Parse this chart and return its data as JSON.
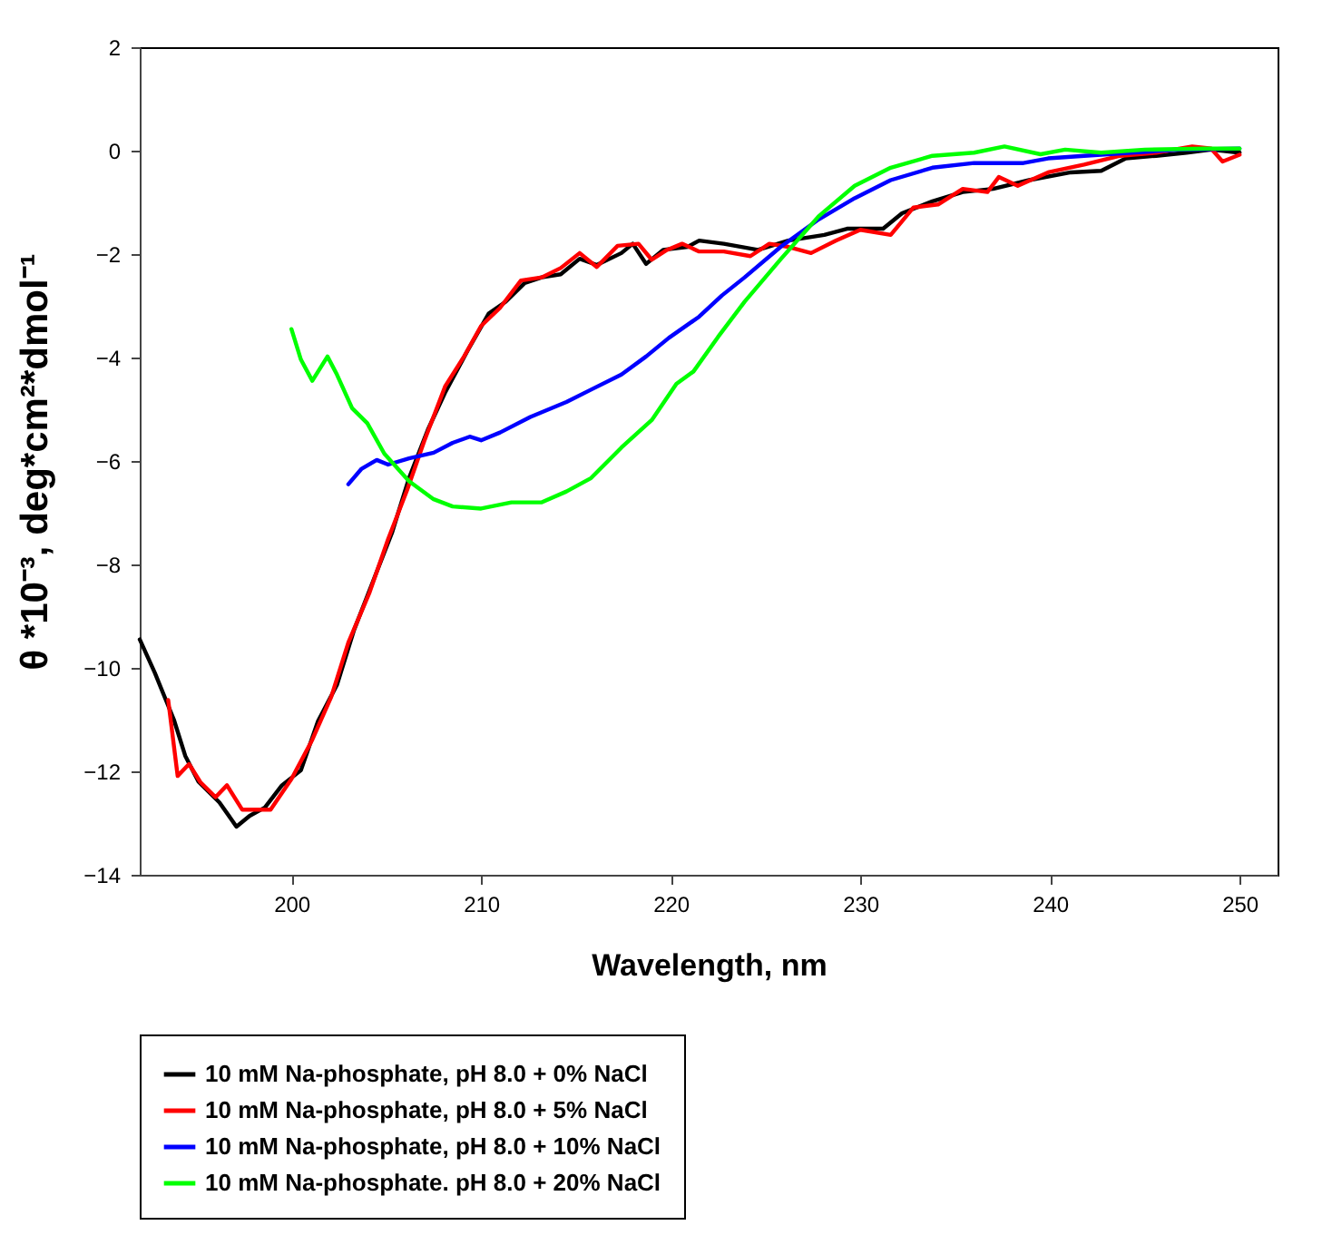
{
  "chart_data": {
    "type": "line",
    "xlabel": "Wavelength, nm",
    "ylabel": "θ *10⁻³, deg*cm²*dmol⁻¹",
    "xlim": [
      192,
      252
    ],
    "xticks": [
      200,
      210,
      220,
      230,
      240,
      250
    ],
    "ylim": [
      -14,
      2
    ],
    "yticks": [
      -14,
      -12,
      -10,
      -8,
      -6,
      -4,
      -2,
      0,
      2
    ],
    "grid": false,
    "legend": "bottom",
    "marker": "none",
    "line_style": "solid",
    "series": [
      {
        "name": "10 mM Na-phosphate, pH 8.0 + 0% NaCl",
        "color": "#000000",
        "x": [
          192.0,
          192.8,
          193.8,
          194.4,
          195.1,
          196.2,
          197.1,
          197.8,
          198.6,
          199.5,
          200.5,
          201.4,
          202.4,
          203.3,
          204.3,
          205.3,
          206.2,
          207.2,
          208.1,
          209.3,
          210.4,
          211.3,
          212.3,
          213.2,
          214.2,
          215.2,
          216.1,
          217.4,
          218.0,
          218.7,
          219.6,
          220.9,
          221.5,
          222.8,
          224.6,
          226.2,
          228.1,
          229.3,
          231.2,
          232.2,
          233.8,
          235.4,
          237.0,
          238.9,
          241.1,
          242.7,
          244.0,
          245.6,
          247.2,
          248.5,
          250.0
        ],
        "values": [
          -9.45,
          -10.1,
          -11.0,
          -11.7,
          -12.2,
          -12.6,
          -13.07,
          -12.86,
          -12.7,
          -12.27,
          -11.98,
          -11.03,
          -10.33,
          -9.27,
          -8.33,
          -7.39,
          -6.33,
          -5.39,
          -4.68,
          -3.86,
          -3.15,
          -2.92,
          -2.56,
          -2.45,
          -2.39,
          -2.09,
          -2.21,
          -1.98,
          -1.8,
          -2.19,
          -1.92,
          -1.86,
          -1.74,
          -1.8,
          -1.92,
          -1.74,
          -1.63,
          -1.51,
          -1.51,
          -1.21,
          -0.98,
          -0.8,
          -0.74,
          -0.57,
          -0.42,
          -0.39,
          -0.15,
          -0.1,
          -0.04,
          0.02,
          -0.04
        ]
      },
      {
        "name": "10 mM Na-phosphate, pH 8.0 + 5% NaCl",
        "color": "#ff0000",
        "x": [
          193.5,
          194.0,
          194.6,
          195.2,
          196.0,
          196.6,
          197.4,
          198.2,
          198.9,
          200.0,
          201.1,
          202.1,
          203.0,
          204.1,
          205.1,
          206.1,
          207.0,
          208.1,
          209.1,
          210.0,
          211.0,
          212.1,
          213.2,
          214.2,
          215.2,
          216.1,
          217.2,
          218.3,
          219.0,
          219.8,
          220.6,
          221.5,
          222.8,
          224.2,
          225.2,
          226.2,
          227.4,
          228.7,
          230.0,
          231.6,
          232.8,
          234.1,
          235.4,
          236.7,
          237.3,
          238.3,
          239.9,
          241.8,
          243.7,
          245.6,
          247.5,
          248.5,
          249.1,
          250.0
        ],
        "values": [
          -10.62,
          -12.09,
          -11.86,
          -12.21,
          -12.5,
          -12.27,
          -12.74,
          -12.74,
          -12.74,
          -12.15,
          -11.39,
          -10.56,
          -9.51,
          -8.56,
          -7.51,
          -6.56,
          -5.62,
          -4.56,
          -3.98,
          -3.39,
          -3.04,
          -2.51,
          -2.45,
          -2.27,
          -1.98,
          -2.25,
          -1.84,
          -1.8,
          -2.11,
          -1.92,
          -1.8,
          -1.95,
          -1.95,
          -2.04,
          -1.8,
          -1.86,
          -1.98,
          -1.74,
          -1.53,
          -1.63,
          -1.1,
          -1.04,
          -0.74,
          -0.8,
          -0.51,
          -0.68,
          -0.42,
          -0.27,
          -0.1,
          -0.04,
          0.08,
          0.04,
          -0.21,
          -0.08
        ]
      },
      {
        "name": "10 mM Na-phosphate, pH 8.0 + 10% NaCl",
        "color": "#0000ff",
        "x": [
          203.0,
          203.7,
          204.5,
          205.1,
          206.2,
          207.5,
          208.5,
          209.4,
          210.0,
          211.0,
          212.6,
          214.5,
          215.8,
          217.4,
          218.7,
          219.9,
          221.5,
          222.7,
          223.9,
          225.8,
          227.8,
          229.7,
          231.6,
          233.8,
          236.0,
          238.6,
          239.9,
          241.8,
          244.3,
          246.9,
          250.0
        ],
        "values": [
          -6.45,
          -6.15,
          -5.98,
          -6.07,
          -5.95,
          -5.84,
          -5.65,
          -5.53,
          -5.6,
          -5.45,
          -5.15,
          -4.86,
          -4.62,
          -4.33,
          -3.98,
          -3.62,
          -3.21,
          -2.8,
          -2.45,
          -1.86,
          -1.33,
          -0.92,
          -0.57,
          -0.33,
          -0.24,
          -0.24,
          -0.15,
          -0.1,
          -0.04,
          0.02,
          0.04
        ]
      },
      {
        "name": "10 mM Na-phosphate. pH 8.0 + 20% NaCl",
        "color": "#00ff00",
        "x": [
          200.0,
          200.5,
          201.1,
          201.9,
          202.4,
          203.2,
          204.0,
          204.9,
          206.2,
          207.5,
          208.5,
          210.0,
          211.6,
          213.2,
          214.5,
          215.8,
          217.4,
          219.0,
          220.3,
          221.2,
          222.5,
          223.9,
          225.8,
          227.8,
          229.7,
          231.6,
          233.8,
          236.0,
          237.6,
          239.5,
          240.8,
          242.7,
          245.0,
          248.2,
          250.0
        ],
        "values": [
          -3.45,
          -4.04,
          -4.45,
          -3.98,
          -4.33,
          -4.98,
          -5.27,
          -5.86,
          -6.39,
          -6.74,
          -6.88,
          -6.92,
          -6.8,
          -6.8,
          -6.59,
          -6.33,
          -5.74,
          -5.21,
          -4.51,
          -4.27,
          -3.6,
          -2.92,
          -2.1,
          -1.27,
          -0.68,
          -0.33,
          -0.1,
          -0.04,
          0.08,
          -0.07,
          0.02,
          -0.04,
          0.02,
          0.04,
          0.04
        ]
      }
    ]
  }
}
